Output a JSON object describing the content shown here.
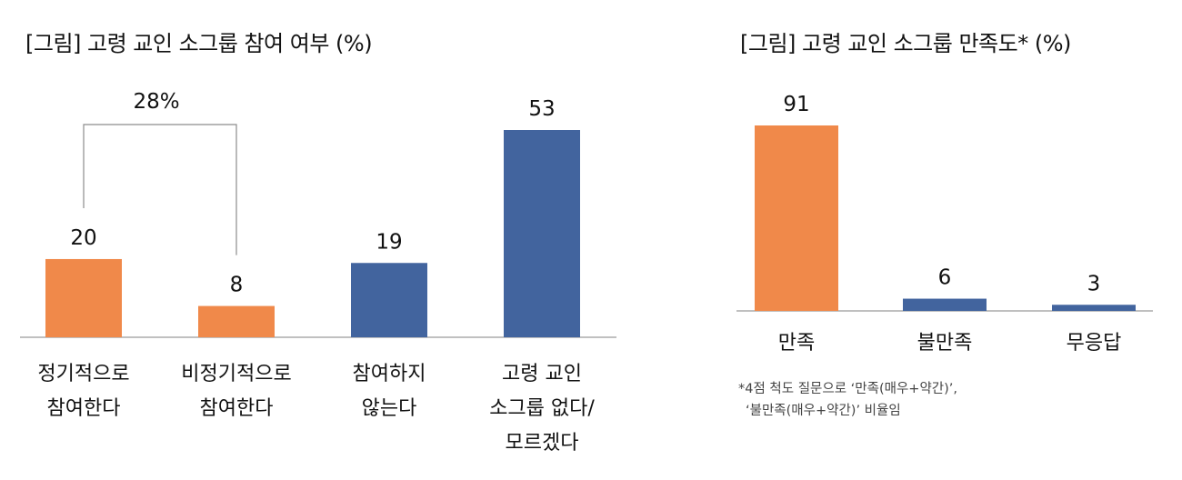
{
  "colors": {
    "orange": "#F0894A",
    "blue": "#42649E",
    "axis": "#9A9A9A",
    "bracket": "#8C8C8C"
  },
  "left": {
    "title": "[그림] 고령 교인 소그룹 참여 여부 (%)",
    "bracket_label": "28%"
  },
  "right": {
    "title": "[그림] 고령 교인 소그룹 만족도* (%)",
    "footnote": {
      "line1": "*4점 척도 질문으로 ‘만족(매우+약간)’,",
      "line2": "‘불만족(매우+약간)’ 비율임"
    }
  },
  "chart_data": [
    {
      "type": "bar",
      "title": "[그림] 고령 교인 소그룹 참여 여부 (%)",
      "categories": [
        [
          "정기적으로",
          "참여한다"
        ],
        [
          "비정기적으로",
          "참여한다"
        ],
        [
          "참여하지",
          "않는다"
        ],
        [
          "고령 교인",
          "소그룹 없다/",
          "모르겠다"
        ]
      ],
      "values": [
        20,
        8,
        19,
        53
      ],
      "bar_colors": [
        "#F0894A",
        "#F0894A",
        "#42649E",
        "#42649E"
      ],
      "data_labels": [
        "20",
        "8",
        "19",
        "53"
      ],
      "annotation": {
        "text": "28%",
        "spans": [
          0,
          1
        ]
      },
      "ylim": [
        0,
        53
      ],
      "grid": false
    },
    {
      "type": "bar",
      "title": "[그림] 고령 교인 소그룹 만족도* (%)",
      "categories": [
        [
          "만족"
        ],
        [
          "불만족"
        ],
        [
          "무응답"
        ]
      ],
      "values": [
        91,
        6,
        3
      ],
      "bar_colors": [
        "#F0894A",
        "#42649E",
        "#42649E"
      ],
      "data_labels": [
        "91",
        "6",
        "3"
      ],
      "ylim": [
        0,
        91
      ],
      "grid": false
    }
  ]
}
